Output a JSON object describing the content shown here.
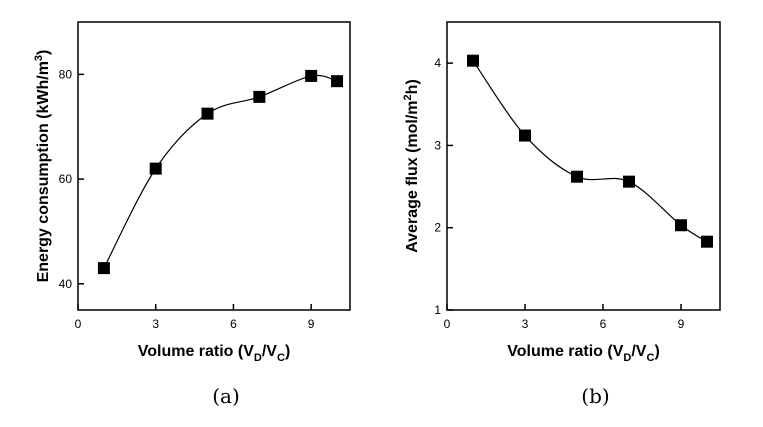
{
  "chart_data": [
    {
      "type": "scatter",
      "xlabel": [
        "Volume ratio (V",
        "D",
        "/V",
        "C",
        ")"
      ],
      "ylabel": [
        "Energy consumption (kWh/m",
        "3",
        ")"
      ],
      "caption": "(a)",
      "x": [
        1,
        3,
        5,
        7,
        9,
        10
      ],
      "values": [
        43,
        62,
        72.5,
        75.7,
        79.7,
        78.7
      ],
      "color": "#000000",
      "xlim": [
        0,
        10.5
      ],
      "xticks": [
        0,
        3,
        6,
        9
      ],
      "ylim": [
        35,
        90
      ],
      "yticks": [
        40,
        60,
        80
      ]
    },
    {
      "type": "scatter",
      "xlabel": [
        "Volume ratio (V",
        "D",
        "/V",
        "C",
        ")"
      ],
      "ylabel": [
        "Average flux (mol/m",
        "2",
        "h)"
      ],
      "caption": "(b)",
      "x": [
        1,
        3,
        5,
        7,
        9,
        10
      ],
      "values": [
        4.03,
        3.12,
        2.62,
        2.56,
        2.03,
        1.83
      ],
      "color": "#000000",
      "xlim": [
        0,
        10.5
      ],
      "xticks": [
        0,
        3,
        6,
        9
      ],
      "ylim": [
        1,
        4.5
      ],
      "yticks": [
        1,
        2,
        3,
        4
      ]
    }
  ]
}
